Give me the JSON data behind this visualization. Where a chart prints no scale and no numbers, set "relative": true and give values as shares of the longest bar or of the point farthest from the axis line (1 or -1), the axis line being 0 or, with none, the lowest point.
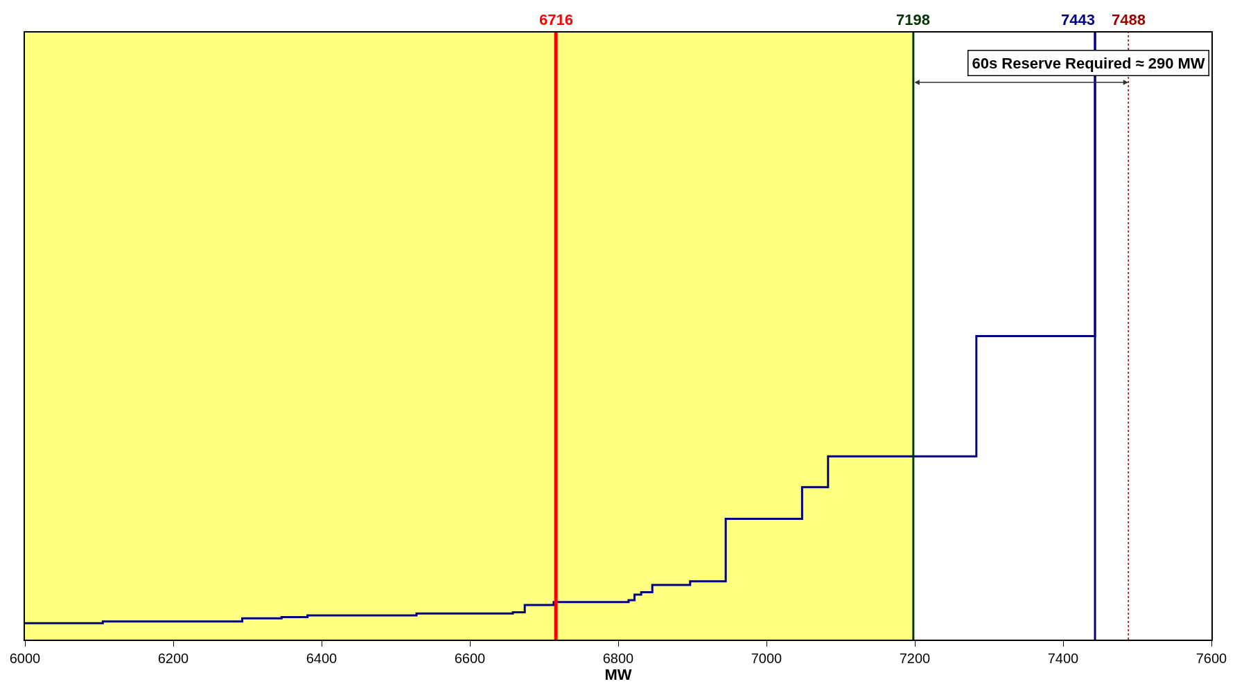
{
  "chart_data": {
    "type": "step",
    "relative": true,
    "xlabel": "MW",
    "xlim": [
      6000,
      7600
    ],
    "xticks": [
      6000,
      6200,
      6400,
      6600,
      6800,
      7000,
      7200,
      7400,
      7600
    ],
    "x": [
      6000,
      6105,
      6293,
      6346,
      6381,
      6528,
      6658,
      6674,
      6713,
      6814,
      6822,
      6831,
      6846,
      6897,
      6945,
      7048,
      7083,
      7283,
      7443
    ],
    "series": [
      {
        "color": "#000080",
        "values": [
          0.027,
          0.03,
          0.035,
          0.037,
          0.04,
          0.043,
          0.045,
          0.057,
          0.062,
          0.065,
          0.074,
          0.078,
          0.09,
          0.096,
          0.199,
          0.251,
          0.302,
          0.5,
          1.0
        ]
      }
    ],
    "ref_lines": [
      {
        "axis": "x",
        "value": 6716,
        "label": "6716",
        "color": "#ff0000",
        "line_style": "solid"
      },
      {
        "axis": "x",
        "value": 7198,
        "label": "7198",
        "color": "#003300",
        "line_style": "solid"
      },
      {
        "axis": "x",
        "value": 7443,
        "label": "7443",
        "color": "#000080",
        "line_style": "solid"
      },
      {
        "axis": "x",
        "value": 7488,
        "label": "7488",
        "color": "#990000",
        "line_style": "dotted"
      }
    ],
    "bands": [
      {
        "axis": "x",
        "from": 6000,
        "to": 7198,
        "color": "#ffff80"
      }
    ],
    "annotations": [
      "60s Reserve Required ≈ 290 MW"
    ],
    "grid": false
  }
}
